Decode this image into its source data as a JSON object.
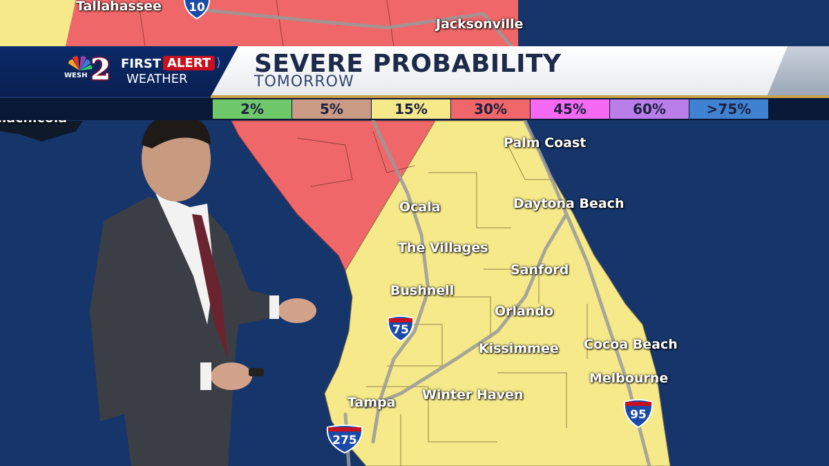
{
  "banner": {
    "brand": {
      "wesh": "WESH",
      "channel": "2",
      "first": "FIRST",
      "alert": "ALERT",
      "weather": "WEATHER"
    },
    "title": "SEVERE PROBABILITY",
    "subtitle": "TOMORROW"
  },
  "legend": [
    {
      "label": "2%",
      "color": "#6fc86a"
    },
    {
      "label": "5%",
      "color": "#c99a84"
    },
    {
      "label": "15%",
      "color": "#f5e98a"
    },
    {
      "label": "30%",
      "color": "#ef6768"
    },
    {
      "label": "45%",
      "color": "#f56af2"
    },
    {
      "label": "60%",
      "color": "#b97ee8"
    },
    {
      "label": ">75%",
      "color": "#3f82d1"
    }
  ],
  "cities": {
    "tallahassee": "Tallahassee",
    "jacksonville": "Jacksonville",
    "apalachicola": "alachicola",
    "palm_coast": "Palm Coast",
    "ocala": "Ocala",
    "daytona": "Daytona Beach",
    "villages": "The Villages",
    "sanford": "Sanford",
    "bushnell": "Bushnell",
    "orlando": "Orlando",
    "kissimmee": "Kissimmee",
    "cocoa": "Cocoa Beach",
    "melbourne": "Melbourne",
    "tampa": "Tampa",
    "winter_haven": "Winter Haven"
  },
  "interstates": {
    "i10": "10",
    "i75": "75",
    "i275": "275",
    "i95": "95"
  },
  "colors": {
    "ocean": "#16356b",
    "risk_30": "#ef6768",
    "risk_15": "#f5e98a"
  }
}
